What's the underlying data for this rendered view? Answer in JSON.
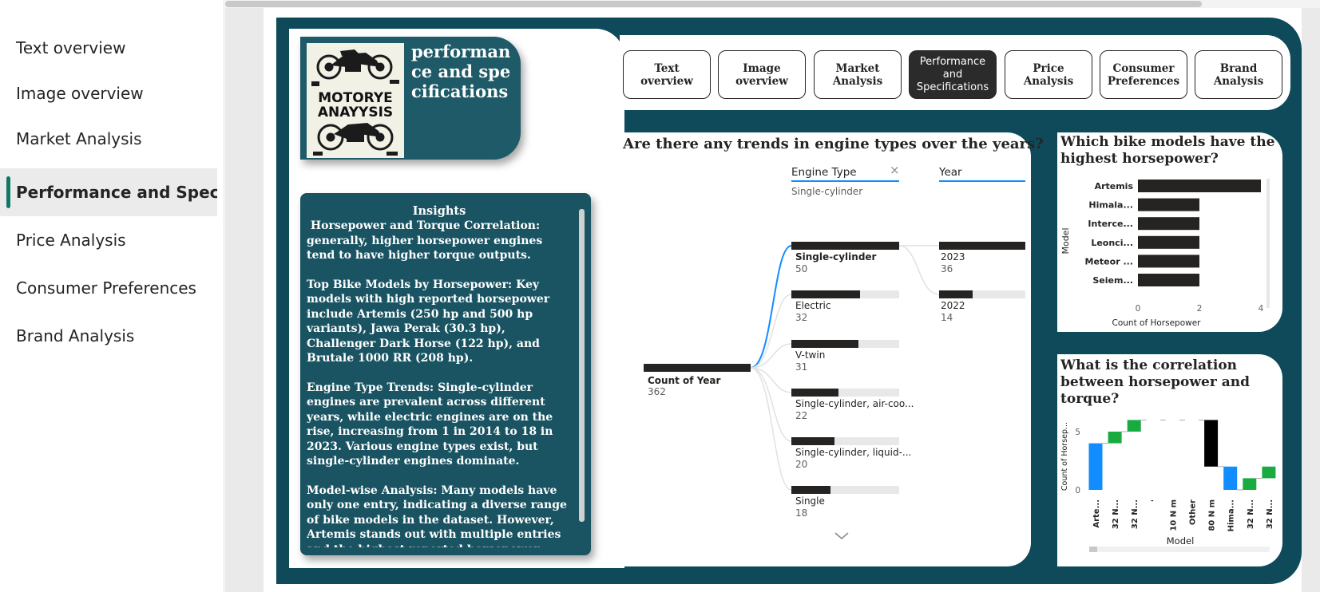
{
  "nav": {
    "items": [
      {
        "label": "Text overview"
      },
      {
        "label": "Image overview"
      },
      {
        "label": "Market Analysis"
      },
      {
        "label": "Performance and Speci..."
      },
      {
        "label": "Price Analysis"
      },
      {
        "label": "Consumer Preferences"
      },
      {
        "label": "Brand Analysis"
      }
    ],
    "active_index": 3,
    "accent_color": "#117865"
  },
  "header": {
    "title": "performance and specifications",
    "logo_text_line1": "MOTORYE",
    "logo_text_line2": "ANAYYSIS"
  },
  "buttons": [
    {
      "label": "Text overview"
    },
    {
      "label": "Image overview"
    },
    {
      "label": "Market Analysis"
    },
    {
      "label": "Performance and Specifications"
    },
    {
      "label": "Price Analysis"
    },
    {
      "label": "Consumer Preferences"
    },
    {
      "label": "Brand Analysis"
    }
  ],
  "insights": {
    "title": "Insights",
    "paragraphs": [
      " Horsepower and Torque Correlation: generally, higher horsepower engines tend to have higher torque outputs.",
      "Top Bike Models by Horsepower: Key models with high reported horsepower include Artemis (250 hp and 500 hp variants), Jawa Perak (30.3 hp), Challenger Dark Horse (122 hp), and Brutale 1000 RR (208 hp).",
      "Engine Type Trends: Single-cylinder engines are prevalent across different years, while electric engines are on the rise, increasing from 1 in 2014 to 18 in 2023. Various engine types exist, but single-cylinder engines dominate.",
      "Model-wise Analysis: Many models have only one entry, indicating a diverse range of bike models in the dataset. However, Artemis stands out with multiple entries and the highest reported horsepower."
    ]
  },
  "decomp": {
    "title": "Are there any trends in engine types over the years?",
    "levels": [
      {
        "header": "Engine Type",
        "selected": "Single-cylinder"
      },
      {
        "header": "Year"
      }
    ],
    "root": {
      "label": "Count of Year",
      "value": 362
    },
    "engine_types": [
      {
        "label": "Single-cylinder",
        "value": 50
      },
      {
        "label": "Electric",
        "value": 32
      },
      {
        "label": "V-twin",
        "value": 31
      },
      {
        "label": "Single-cylinder, air-coo...",
        "value": 22
      },
      {
        "label": "Single-cylinder, liquid-...",
        "value": 20
      },
      {
        "label": "Single",
        "value": 18
      }
    ],
    "years": [
      {
        "label": "2023",
        "value": 36
      },
      {
        "label": "2022",
        "value": 14
      }
    ],
    "link_color": "#118dff"
  },
  "hp_chart": {
    "title": "Which bike models have the highest horsepower?",
    "chart_data": {
      "type": "bar",
      "orientation": "horizontal",
      "categories": [
        "Artemis",
        "Himala...",
        "Interce...",
        "Leonci...",
        "Meteor ...",
        "Seiem..."
      ],
      "values": [
        4,
        2,
        2,
        2,
        2,
        2
      ],
      "xlabel": "Count of Horsepower",
      "ylabel": "Model",
      "xticks": [
        "0",
        "2",
        "4"
      ],
      "xlim": [
        0,
        4
      ],
      "bar_color": "#252423"
    }
  },
  "wf_chart": {
    "title": "What is the correlation between horsepower and torque?",
    "chart_data": {
      "type": "waterfall",
      "categories": [
        "Arte...",
        "32 N...",
        "32 N...",
        "'",
        "10 N m",
        "Other",
        "80 N m",
        "Hima...",
        "32 N...",
        "32 N..."
      ],
      "deltas": [
        4,
        1,
        1,
        0,
        0,
        0,
        -4,
        -2,
        1,
        1
      ],
      "xlabel": "Model",
      "ylabel": "Count of Horsep...",
      "yticks": [
        "0",
        "5"
      ],
      "ylim": [
        0,
        7
      ],
      "increase_color": "#1aab40",
      "decrease_color": "#118dff",
      "total_color": "#000000"
    }
  }
}
